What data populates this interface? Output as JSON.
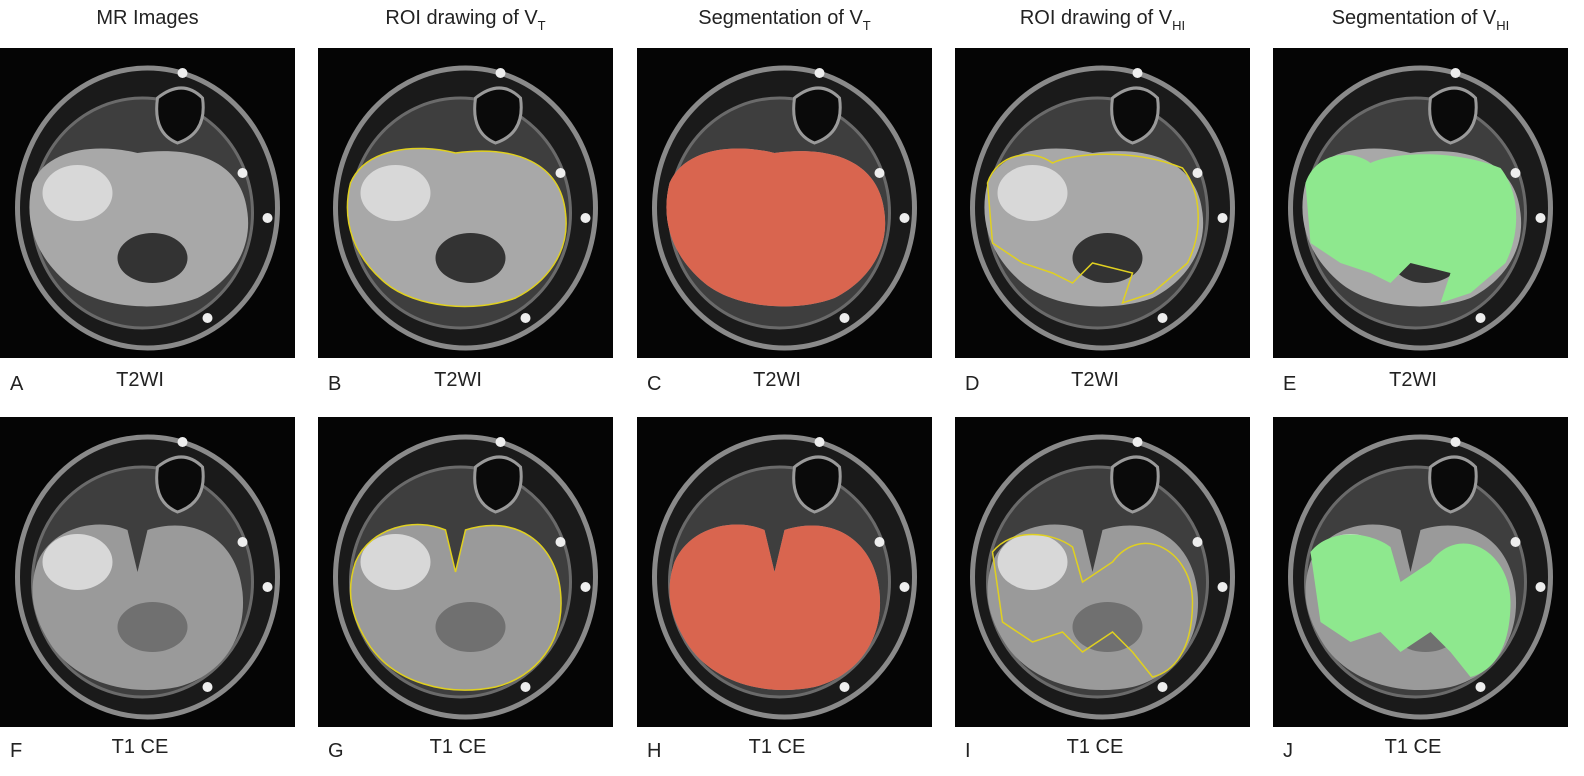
{
  "headers": [
    {
      "text": "MR Images"
    },
    {
      "text": "ROI drawing of V",
      "sub": "T"
    },
    {
      "text": "Segmentation of V",
      "sub": "T"
    },
    {
      "text": "ROI drawing of V",
      "sub": "HI"
    },
    {
      "text": "Segmentation of V",
      "sub": "HI"
    }
  ],
  "panels": [
    {
      "letter": "A",
      "label": "T2WI"
    },
    {
      "letter": "B",
      "label": "T2WI"
    },
    {
      "letter": "C",
      "label": "T2WI"
    },
    {
      "letter": "D",
      "label": "T2WI"
    },
    {
      "letter": "E",
      "label": "T2WI"
    },
    {
      "letter": "F",
      "label": "T1 CE"
    },
    {
      "letter": "G",
      "label": "T1 CE"
    },
    {
      "letter": "H",
      "label": "T1 CE"
    },
    {
      "letter": "I",
      "label": "T1 CE"
    },
    {
      "letter": "J",
      "label": "T1 CE"
    }
  ]
}
